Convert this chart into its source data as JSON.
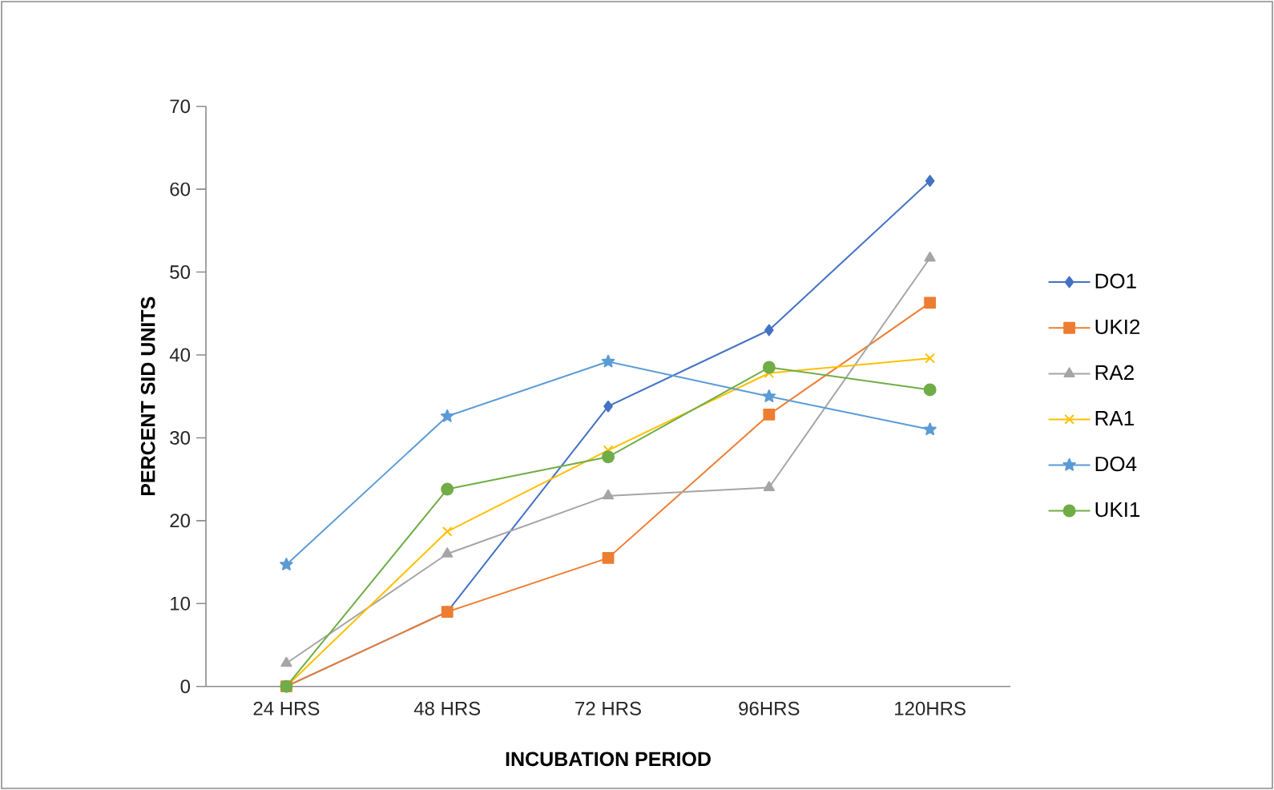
{
  "chart_data": {
    "type": "line",
    "xlabel": "INCUBATION PERIOD",
    "ylabel": "PERCENT SID UNITS",
    "categories": [
      "24 HRS",
      "48 HRS",
      "72 HRS",
      "96HRS",
      "120HRS"
    ],
    "ylim": [
      0,
      70
    ],
    "yticks": [
      0,
      10,
      20,
      30,
      40,
      50,
      60,
      70
    ],
    "grid": false,
    "legend": "right",
    "line_style": "solid",
    "series": [
      {
        "name": "DO1",
        "color": "#4472c4",
        "marker": "diamond",
        "values": [
          0,
          9,
          33.8,
          43,
          61
        ]
      },
      {
        "name": "UKI2",
        "color": "#ed7d31",
        "marker": "square",
        "values": [
          0,
          9,
          15.5,
          32.8,
          46.3
        ]
      },
      {
        "name": "RA2",
        "color": "#a5a5a5",
        "marker": "triangle",
        "values": [
          2.8,
          16,
          23,
          24,
          51.7
        ]
      },
      {
        "name": "RA1",
        "color": "#ffc000",
        "marker": "cross",
        "values": [
          0,
          18.7,
          28.5,
          37.8,
          39.6
        ]
      },
      {
        "name": "DO4",
        "color": "#5b9bd5",
        "marker": "star",
        "values": [
          14.7,
          32.6,
          39.2,
          35,
          31
        ]
      },
      {
        "name": "UKI1",
        "color": "#70ad47",
        "marker": "circle",
        "values": [
          0,
          23.8,
          27.7,
          38.5,
          35.8
        ]
      }
    ]
  }
}
